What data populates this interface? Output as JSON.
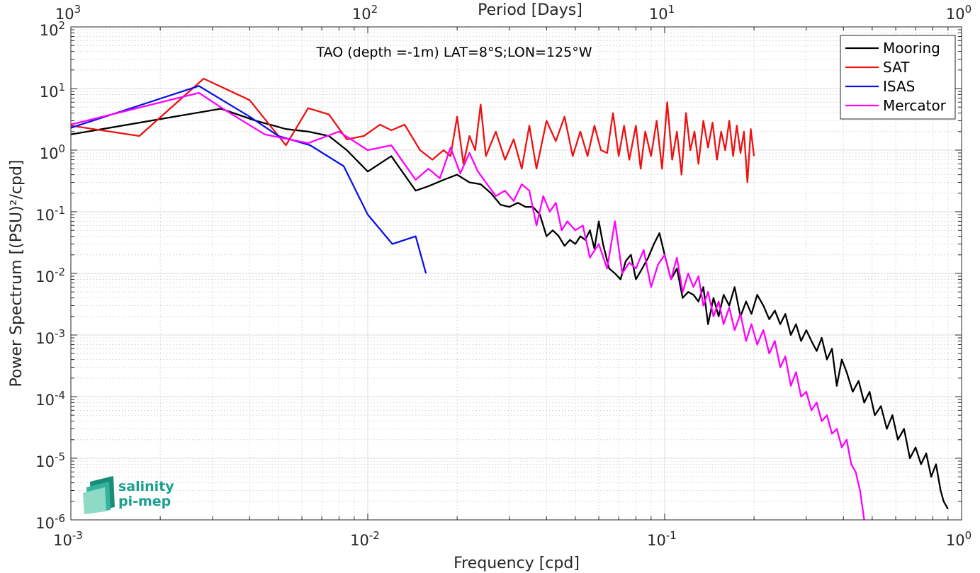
{
  "chart_data": {
    "type": "line",
    "title": "TAO (depth =-1m) LAT=8°S;LON=125°W",
    "xlabel": "Frequency [cpd]",
    "ylabel": "Power Spectrum [(PSU)²/cpd]",
    "top_xlabel": "Period [Days]",
    "xscale": "log",
    "yscale": "log",
    "xlim": [
      0.001,
      1
    ],
    "ylim": [
      1e-06,
      100
    ],
    "grid": true,
    "legend_position": "top-right",
    "x_ticks": [
      {
        "value": 0.001,
        "base": "10",
        "exp": "-3"
      },
      {
        "value": 0.01,
        "base": "10",
        "exp": "-2"
      },
      {
        "value": 0.1,
        "base": "10",
        "exp": "-1"
      },
      {
        "value": 1,
        "base": "10",
        "exp": "0"
      }
    ],
    "y_ticks": [
      {
        "value": 1e-06,
        "base": "10",
        "exp": "-6"
      },
      {
        "value": 1e-05,
        "base": "10",
        "exp": "-5"
      },
      {
        "value": 0.0001,
        "base": "10",
        "exp": "-4"
      },
      {
        "value": 0.001,
        "base": "10",
        "exp": "-3"
      },
      {
        "value": 0.01,
        "base": "10",
        "exp": "-2"
      },
      {
        "value": 0.1,
        "base": "10",
        "exp": "-1"
      },
      {
        "value": 1,
        "base": "10",
        "exp": "0"
      },
      {
        "value": 10,
        "base": "10",
        "exp": "1"
      },
      {
        "value": 100,
        "base": "10",
        "exp": "2"
      }
    ],
    "top_ticks": [
      {
        "freq": 0.001,
        "base": "10",
        "exp": "3"
      },
      {
        "freq": 0.01,
        "base": "10",
        "exp": "2"
      },
      {
        "freq": 0.1,
        "base": "10",
        "exp": "1"
      },
      {
        "freq": 1,
        "base": "10",
        "exp": "0"
      }
    ],
    "series": [
      {
        "name": "Mooring",
        "color": "#000000",
        "x": [
          0.001,
          0.0032,
          0.0042,
          0.0053,
          0.0063,
          0.0074,
          0.0085,
          0.01,
          0.012,
          0.0145,
          0.016,
          0.018,
          0.02,
          0.022,
          0.024,
          0.026,
          0.028,
          0.03,
          0.032,
          0.034,
          0.036,
          0.038,
          0.04,
          0.042,
          0.044,
          0.046,
          0.048,
          0.05,
          0.052,
          0.054,
          0.056,
          0.058,
          0.06,
          0.062,
          0.065,
          0.068,
          0.071,
          0.074,
          0.077,
          0.08,
          0.084,
          0.088,
          0.092,
          0.096,
          0.1,
          0.105,
          0.11,
          0.115,
          0.12,
          0.125,
          0.13,
          0.135,
          0.14,
          0.146,
          0.152,
          0.158,
          0.165,
          0.172,
          0.18,
          0.188,
          0.196,
          0.205,
          0.215,
          0.225,
          0.235,
          0.245,
          0.255,
          0.266,
          0.277,
          0.288,
          0.3,
          0.312,
          0.325,
          0.338,
          0.352,
          0.366,
          0.38,
          0.395,
          0.41,
          0.43,
          0.45,
          0.47,
          0.49,
          0.51,
          0.535,
          0.56,
          0.585,
          0.61,
          0.64,
          0.67,
          0.7,
          0.73,
          0.76,
          0.79,
          0.82,
          0.85,
          0.87,
          0.9
        ],
        "y": [
          1.8,
          4.7,
          3.0,
          2.2,
          2.0,
          1.7,
          1.0,
          0.45,
          0.8,
          0.22,
          0.26,
          0.33,
          0.4,
          0.3,
          0.28,
          0.2,
          0.13,
          0.12,
          0.14,
          0.12,
          0.12,
          0.09,
          0.04,
          0.05,
          0.04,
          0.028,
          0.035,
          0.03,
          0.04,
          0.035,
          0.05,
          0.025,
          0.07,
          0.03,
          0.012,
          0.01,
          0.008,
          0.016,
          0.02,
          0.008,
          0.012,
          0.018,
          0.03,
          0.045,
          0.02,
          0.008,
          0.012,
          0.004,
          0.005,
          0.0045,
          0.0035,
          0.006,
          0.0015,
          0.004,
          0.002,
          0.0045,
          0.003,
          0.006,
          0.002,
          0.0035,
          0.0022,
          0.0045,
          0.003,
          0.0018,
          0.0025,
          0.0015,
          0.0022,
          0.001,
          0.0015,
          0.0008,
          0.0012,
          0.0008,
          0.00055,
          0.0009,
          0.0004,
          0.0006,
          0.00015,
          0.0004,
          0.00025,
          0.00012,
          0.00018,
          8e-05,
          0.00012,
          5e-05,
          7e-05,
          3e-05,
          5e-05,
          2e-05,
          3e-05,
          1e-05,
          1.5e-05,
          8e-06,
          1.2e-05,
          5e-06,
          8e-06,
          3e-06,
          2e-06,
          1.5e-06
        ]
      },
      {
        "name": "SAT",
        "color": "#ee1111",
        "x": [
          0.001,
          0.0017,
          0.0028,
          0.004,
          0.0053,
          0.0063,
          0.0074,
          0.0085,
          0.0097,
          0.011,
          0.012,
          0.0133,
          0.015,
          0.0165,
          0.018,
          0.019,
          0.02,
          0.021,
          0.022,
          0.023,
          0.024,
          0.025,
          0.027,
          0.029,
          0.031,
          0.033,
          0.035,
          0.037,
          0.04,
          0.043,
          0.046,
          0.049,
          0.052,
          0.055,
          0.058,
          0.061,
          0.064,
          0.067,
          0.07,
          0.073,
          0.076,
          0.08,
          0.083,
          0.086,
          0.09,
          0.094,
          0.098,
          0.102,
          0.106,
          0.11,
          0.114,
          0.118,
          0.122,
          0.126,
          0.13,
          0.135,
          0.14,
          0.145,
          0.15,
          0.155,
          0.16,
          0.165,
          0.17,
          0.175,
          0.18,
          0.185,
          0.19,
          0.195,
          0.2
        ],
        "y": [
          2.5,
          1.7,
          14.5,
          6.5,
          1.2,
          4.8,
          3.8,
          1.5,
          1.7,
          2.6,
          2.1,
          2.6,
          1.0,
          0.7,
          1.0,
          0.8,
          3.5,
          0.6,
          1.7,
          1.0,
          5.5,
          0.8,
          2.0,
          0.7,
          1.5,
          0.5,
          2.5,
          0.5,
          3.0,
          1.4,
          3.5,
          0.8,
          2.0,
          0.8,
          2.5,
          1.0,
          0.9,
          4.0,
          0.8,
          2.5,
          0.7,
          2.5,
          0.5,
          2.0,
          0.8,
          3.0,
          0.5,
          6.0,
          0.7,
          2.0,
          0.4,
          4.0,
          1.0,
          2.0,
          0.6,
          3.0,
          1.1,
          2.8,
          0.7,
          2.0,
          1.0,
          3.0,
          0.8,
          2.5,
          0.9,
          2.0,
          0.3,
          2.2,
          0.8
        ]
      },
      {
        "name": "ISAS",
        "color": "#0a14e6",
        "x": [
          0.001,
          0.0027,
          0.004,
          0.005,
          0.0064,
          0.0083,
          0.01,
          0.0121,
          0.0145,
          0.0157
        ],
        "y": [
          2.3,
          11.0,
          3.5,
          1.7,
          1.2,
          0.55,
          0.09,
          0.03,
          0.04,
          0.01
        ]
      },
      {
        "name": "Mercator",
        "color": "#ff00ff",
        "x": [
          0.001,
          0.0027,
          0.0033,
          0.0045,
          0.0063,
          0.008,
          0.01,
          0.012,
          0.0145,
          0.016,
          0.0175,
          0.019,
          0.0205,
          0.022,
          0.0235,
          0.025,
          0.027,
          0.029,
          0.031,
          0.033,
          0.035,
          0.037,
          0.039,
          0.041,
          0.043,
          0.045,
          0.047,
          0.05,
          0.053,
          0.056,
          0.06,
          0.064,
          0.068,
          0.072,
          0.076,
          0.08,
          0.085,
          0.09,
          0.095,
          0.1,
          0.105,
          0.11,
          0.115,
          0.12,
          0.125,
          0.13,
          0.135,
          0.14,
          0.146,
          0.152,
          0.158,
          0.165,
          0.172,
          0.18,
          0.188,
          0.196,
          0.205,
          0.215,
          0.225,
          0.235,
          0.245,
          0.255,
          0.266,
          0.277,
          0.288,
          0.3,
          0.312,
          0.325,
          0.338,
          0.352,
          0.366,
          0.38,
          0.395,
          0.41,
          0.425,
          0.44,
          0.455,
          0.47
        ],
        "y": [
          2.6,
          8.5,
          4.5,
          1.8,
          1.3,
          2.0,
          1.0,
          1.2,
          0.33,
          0.5,
          0.35,
          1.1,
          0.42,
          0.9,
          0.45,
          0.3,
          0.18,
          0.22,
          0.15,
          0.28,
          0.22,
          0.06,
          0.18,
          0.1,
          0.14,
          0.05,
          0.07,
          0.05,
          0.06,
          0.018,
          0.03,
          0.012,
          0.07,
          0.01,
          0.015,
          0.012,
          0.024,
          0.006,
          0.014,
          0.02,
          0.008,
          0.018,
          0.005,
          0.01,
          0.006,
          0.009,
          0.003,
          0.005,
          0.002,
          0.0035,
          0.0015,
          0.0028,
          0.0012,
          0.0022,
          0.0008,
          0.0015,
          0.0007,
          0.0012,
          0.0005,
          0.0008,
          0.0003,
          0.00045,
          0.00015,
          0.00025,
          0.0001,
          0.00012,
          6e-05,
          8e-05,
          4e-05,
          5e-05,
          2.5e-05,
          3e-05,
          1.5e-05,
          2e-05,
          8e-06,
          6e-06,
          3e-06,
          1e-06
        ]
      }
    ]
  },
  "logo": {
    "line1": "salinity",
    "line2": "pi-mep"
  }
}
